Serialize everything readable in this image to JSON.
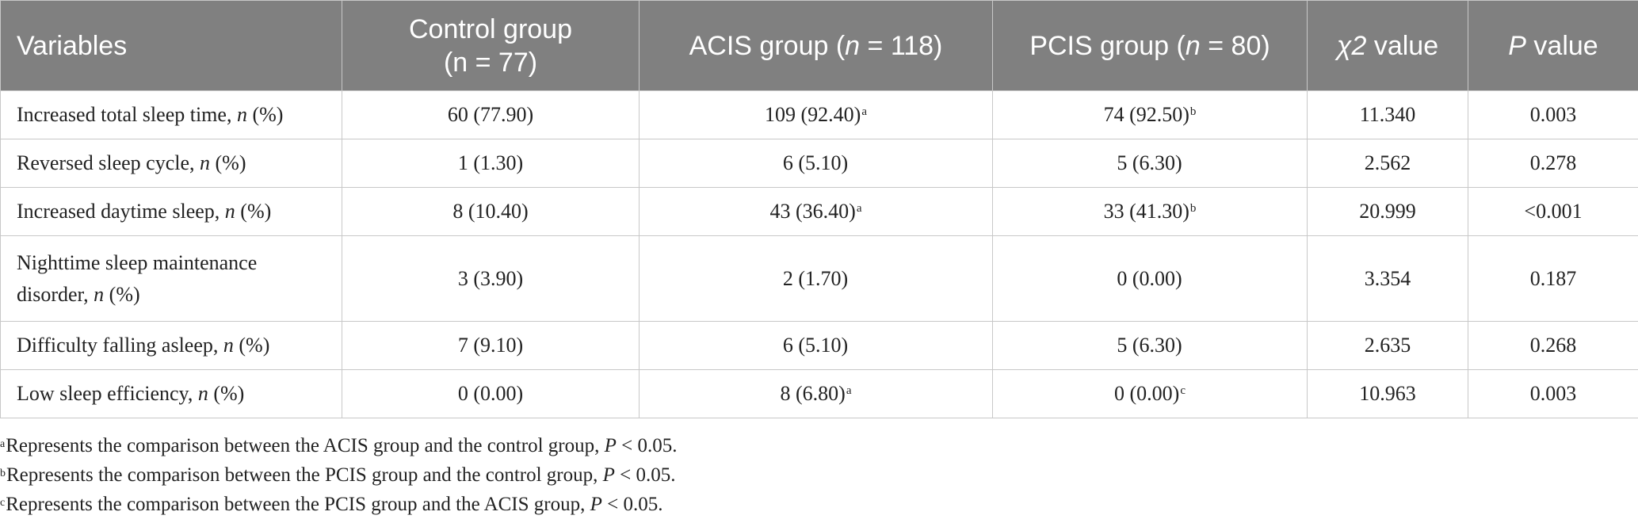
{
  "table": {
    "headers": {
      "variables": "Variables",
      "control": "Control group",
      "control_n": "(n = 77)",
      "acis_prefix": "ACIS group (",
      "acis_n_var": "n",
      "acis_n_val": " = 118)",
      "pcis_prefix": "PCIS group (",
      "pcis_n_var": "n",
      "pcis_n_val": " = 80)",
      "chi_symbol": "χ2",
      "chi_label": " value",
      "p_symbol": "P",
      "p_label": " value"
    },
    "rows": [
      {
        "label": "Increased total sleep time, ",
        "unit_var": "n",
        "unit": " (%)",
        "control": "60 (77.90)",
        "acis": "109 (92.40)",
        "acis_sup": "a",
        "pcis": "74 (92.50)",
        "pcis_sup": "b",
        "chi2": "11.340",
        "p": "0.003"
      },
      {
        "label": "Reversed sleep cycle, ",
        "unit_var": "n",
        "unit": " (%)",
        "control": "1 (1.30)",
        "acis": "6 (5.10)",
        "acis_sup": "",
        "pcis": "5 (6.30)",
        "pcis_sup": "",
        "chi2": "2.562",
        "p": "0.278"
      },
      {
        "label": "Increased daytime sleep, ",
        "unit_var": "n",
        "unit": " (%)",
        "control": "8 (10.40)",
        "acis": "43 (36.40)",
        "acis_sup": "a",
        "pcis": "33 (41.30)",
        "pcis_sup": "b",
        "chi2": "20.999",
        "p": "<0.001"
      },
      {
        "label": "Nighttime sleep maintenance disorder, ",
        "unit_var": "n",
        "unit": " (%)",
        "control": "3 (3.90)",
        "acis": "2 (1.70)",
        "acis_sup": "",
        "pcis": "0 (0.00)",
        "pcis_sup": "",
        "chi2": "3.354",
        "p": "0.187"
      },
      {
        "label": "Difficulty falling asleep, ",
        "unit_var": "n",
        "unit": " (%)",
        "control": "7 (9.10)",
        "acis": "6 (5.10)",
        "acis_sup": "",
        "pcis": "5 (6.30)",
        "pcis_sup": "",
        "chi2": "2.635",
        "p": "0.268"
      },
      {
        "label": "Low sleep efficiency, ",
        "unit_var": "n",
        "unit": " (%)",
        "control": "0 (0.00)",
        "acis": "8 (6.80)",
        "acis_sup": "a",
        "pcis": "0 (0.00)",
        "pcis_sup": "c",
        "chi2": "10.963",
        "p": "0.003"
      }
    ]
  },
  "footnotes": [
    {
      "mark": "a",
      "text": "Represents the comparison between the ACIS group and the control group, ",
      "p": "P",
      "tail": " < 0.05."
    },
    {
      "mark": "b",
      "text": "Represents the comparison between the PCIS group and the control group, ",
      "p": "P",
      "tail": " < 0.05."
    },
    {
      "mark": "c",
      "text": "Represents the comparison between the PCIS group and the ACIS group, ",
      "p": "P",
      "tail": " < 0.05."
    }
  ]
}
